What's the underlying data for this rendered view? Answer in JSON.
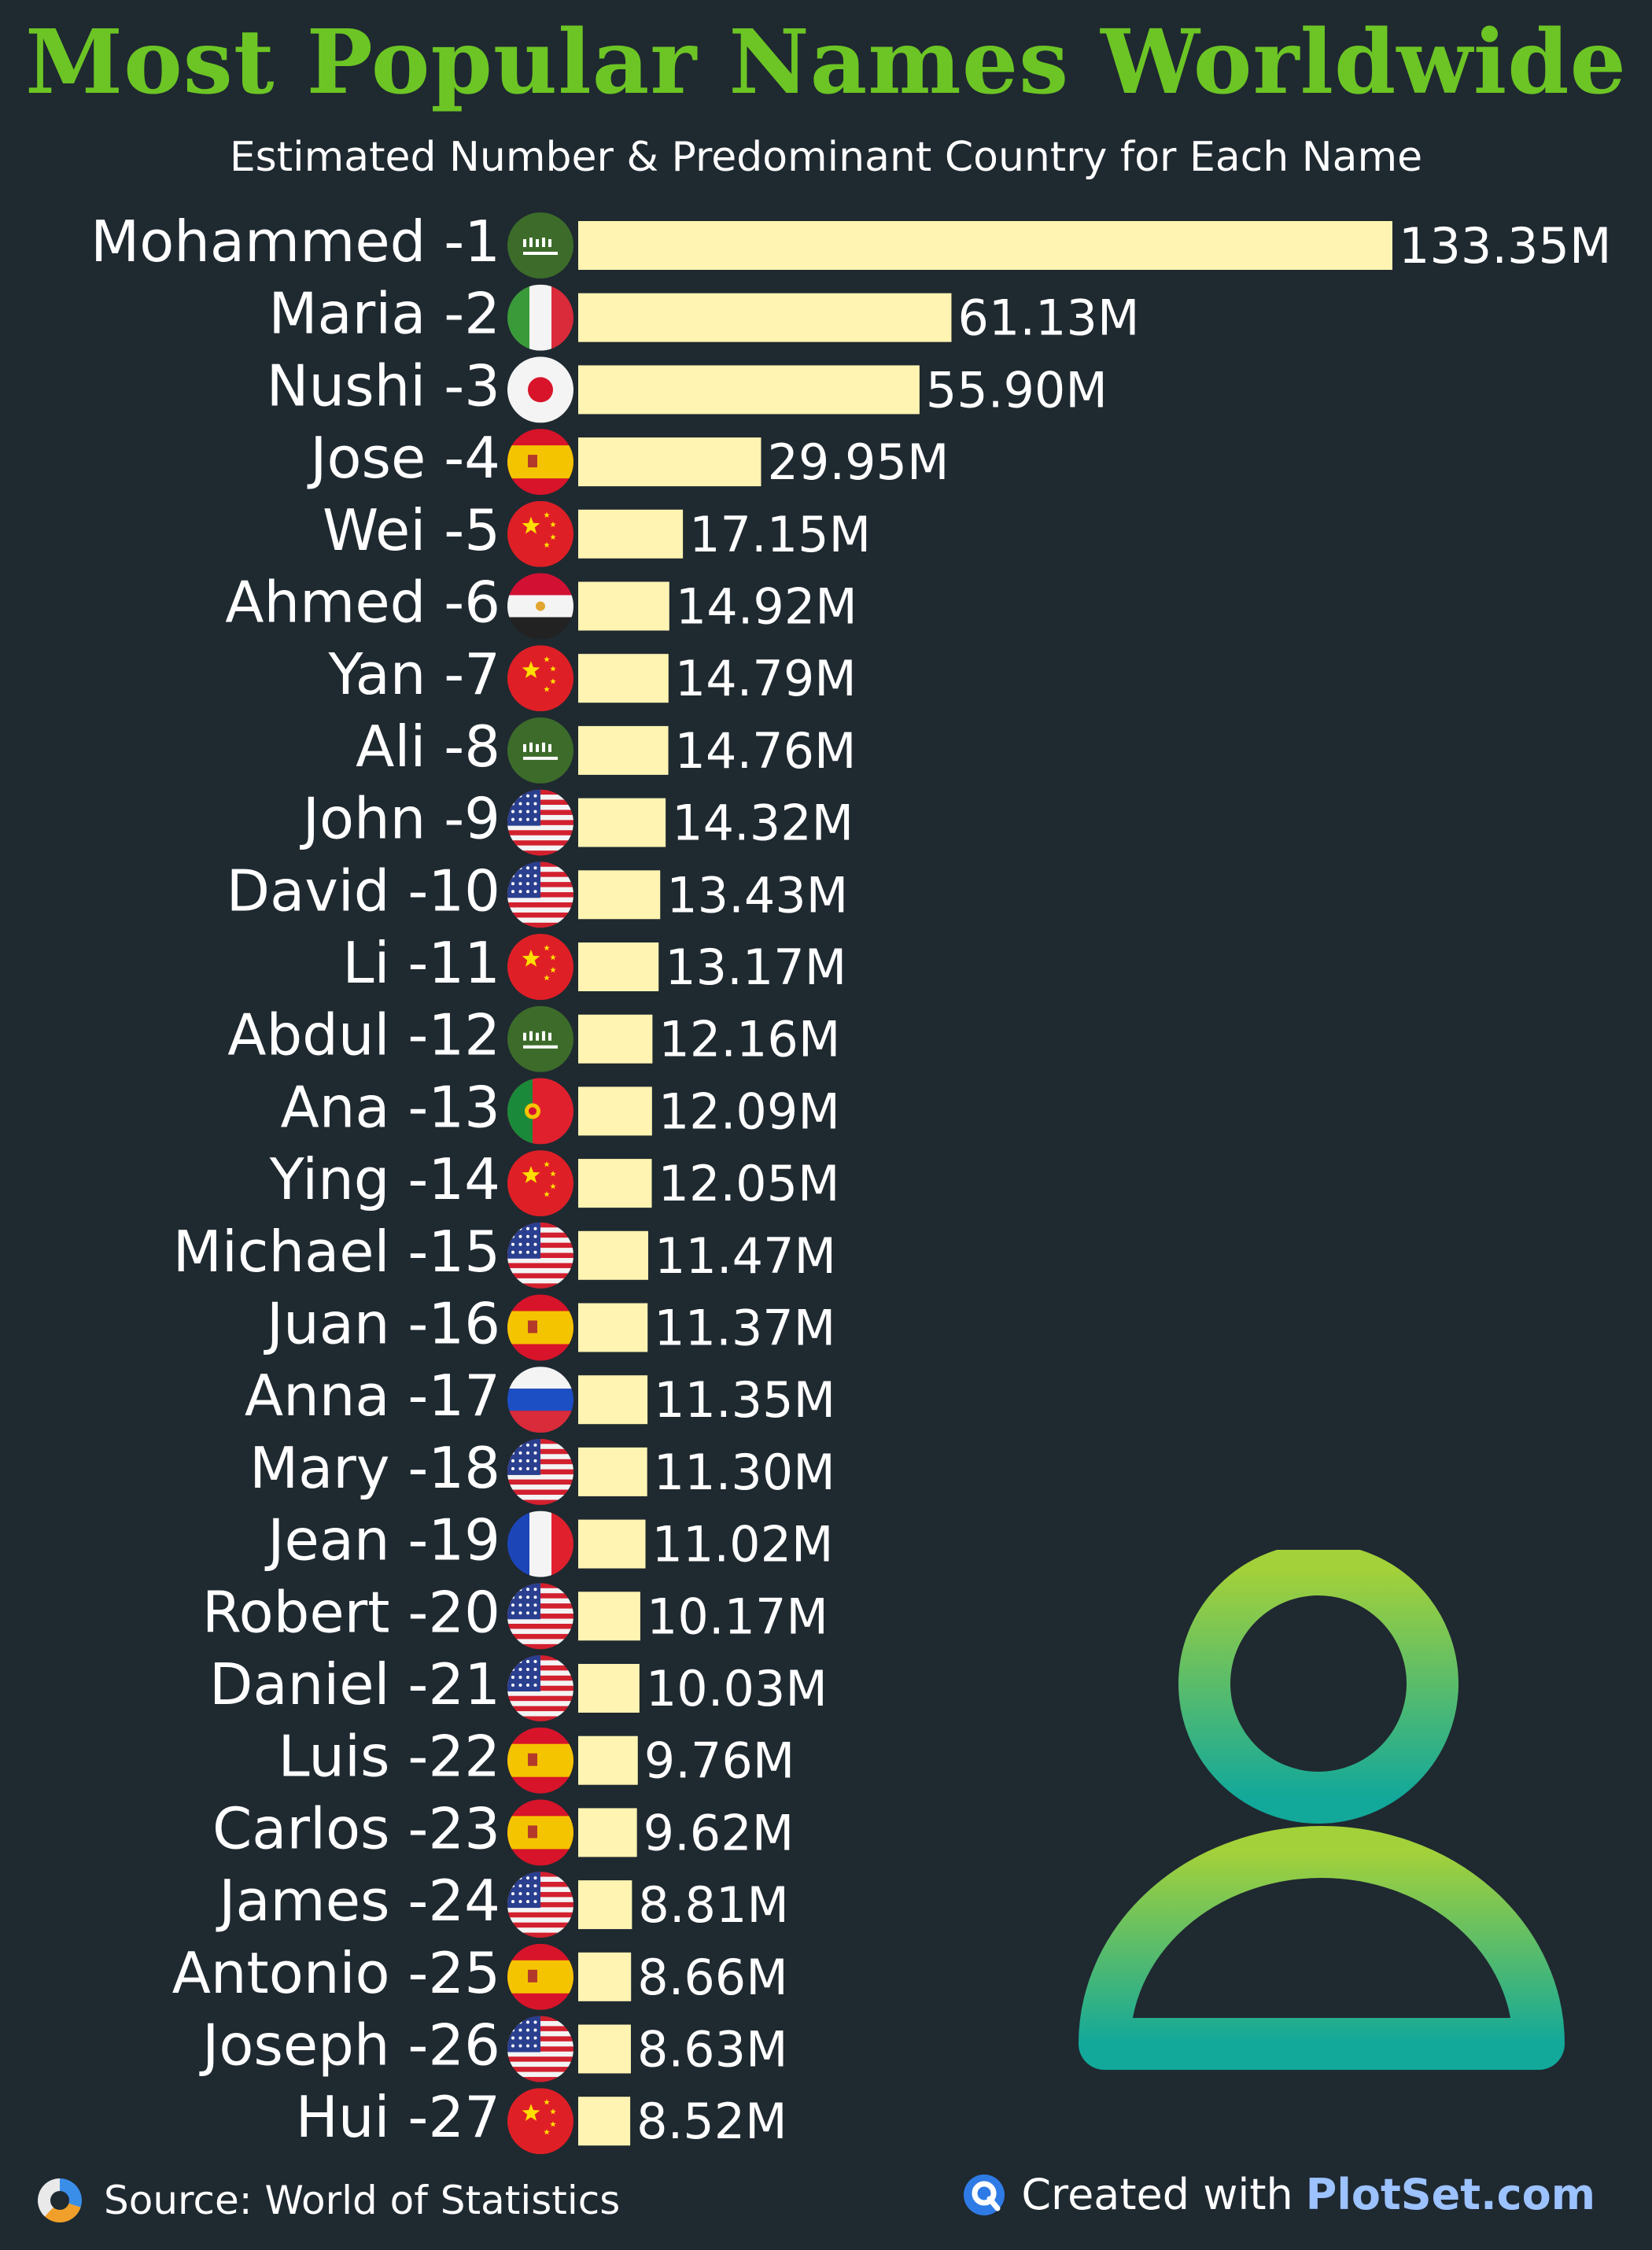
{
  "title": "Most Popular Names Worldwide",
  "subtitle": "Estimated Number & Predominant Country for Each Name",
  "source": "Source: World of Statistics",
  "credit": {
    "prefix": "Created with",
    "brand": "PlotSet.com"
  },
  "colors": {
    "background": "#1f2930",
    "bar": "#fff4b2",
    "title": "#6cc524",
    "icon_top": "#a3d13a",
    "icon_bottom": "#12a89a"
  },
  "chart_data": {
    "type": "bar",
    "orientation": "horizontal",
    "title": "Most Popular Names Worldwide",
    "subtitle": "Estimated Number & Predominant Country for Each Name",
    "xlabel": "",
    "ylabel": "",
    "unit": "M",
    "xlim": [
      0,
      133.35
    ],
    "categories": [
      "Mohammed -1",
      "Maria -2",
      "Nushi -3",
      "Jose -4",
      "Wei -5",
      "Ahmed -6",
      "Yan -7",
      "Ali -8",
      "John -9",
      "David -10",
      "Li -11",
      "Abdul -12",
      "Ana -13",
      "Ying -14",
      "Michael -15",
      "Juan -16",
      "Anna -17",
      "Mary -18",
      "Jean -19",
      "Robert -20",
      "Daniel -21",
      "Luis -22",
      "Carlos -23",
      "James -24",
      "Antonio -25",
      "Joseph -26",
      "Hui -27"
    ],
    "values": [
      133.35,
      61.13,
      55.9,
      29.95,
      17.15,
      14.92,
      14.79,
      14.76,
      14.32,
      13.43,
      13.17,
      12.16,
      12.09,
      12.05,
      11.47,
      11.37,
      11.35,
      11.3,
      11.02,
      10.17,
      10.03,
      9.76,
      9.62,
      8.81,
      8.66,
      8.63,
      8.52
    ],
    "value_labels": [
      "133.35M",
      "61.13M",
      "55.90M",
      "29.95M",
      "17.15M",
      "14.92M",
      "14.79M",
      "14.76M",
      "14.32M",
      "13.43M",
      "13.17M",
      "12.16M",
      "12.09M",
      "12.05M",
      "11.47M",
      "11.37M",
      "11.35M",
      "11.30M",
      "11.02M",
      "10.17M",
      "10.03M",
      "9.76M",
      "9.62M",
      "8.81M",
      "8.66M",
      "8.63M",
      "8.52M"
    ],
    "flags": [
      "saudi-arabia",
      "italy",
      "japan",
      "spain",
      "china",
      "egypt",
      "china",
      "saudi-arabia",
      "usa",
      "usa",
      "china",
      "saudi-arabia",
      "portugal",
      "china",
      "usa",
      "spain",
      "russia",
      "usa",
      "france",
      "usa",
      "usa",
      "spain",
      "spain",
      "usa",
      "spain",
      "usa",
      "china"
    ]
  }
}
